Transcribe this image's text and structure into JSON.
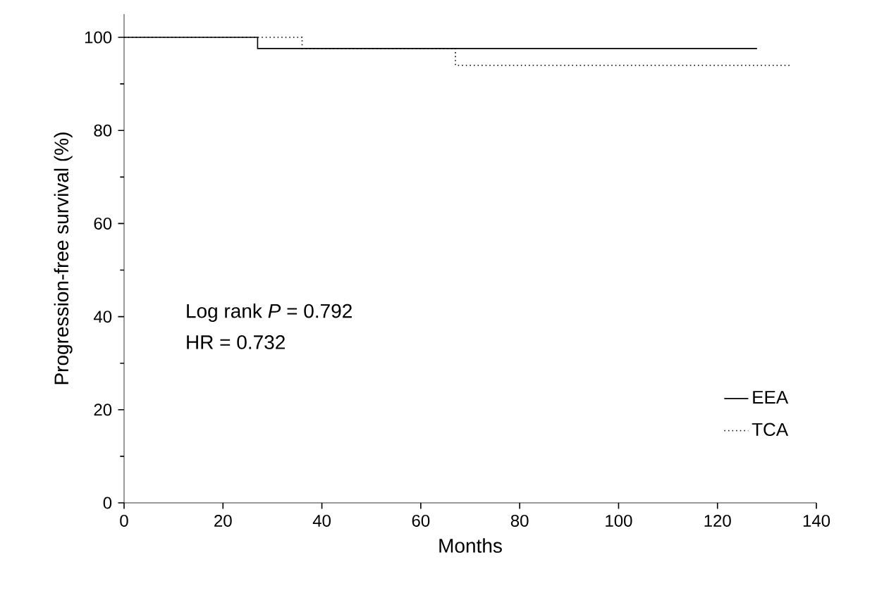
{
  "chart_data": {
    "type": "step",
    "xlabel": "Months",
    "ylabel": "Progression-free survival (%)",
    "xlim": [
      0,
      140
    ],
    "xticks": [
      0,
      20,
      40,
      60,
      80,
      100,
      120,
      140
    ],
    "ylim": [
      0,
      105
    ],
    "yticks": [
      0,
      20,
      40,
      60,
      80,
      100
    ],
    "legend": "bottom right",
    "series": [
      {
        "name": "EEA",
        "color": "#000000",
        "line_style": "solid",
        "x": [
          0,
          27,
          128
        ],
        "values": [
          100,
          97.6,
          97.6
        ]
      },
      {
        "name": "TCA",
        "color": "#000000",
        "line_style": "dotted",
        "x": [
          0,
          36,
          67,
          135
        ],
        "values": [
          100,
          97.6,
          94,
          94
        ]
      }
    ],
    "annotations": [
      "Log rank *P* = 0.792",
      "HR = 0.732"
    ]
  }
}
